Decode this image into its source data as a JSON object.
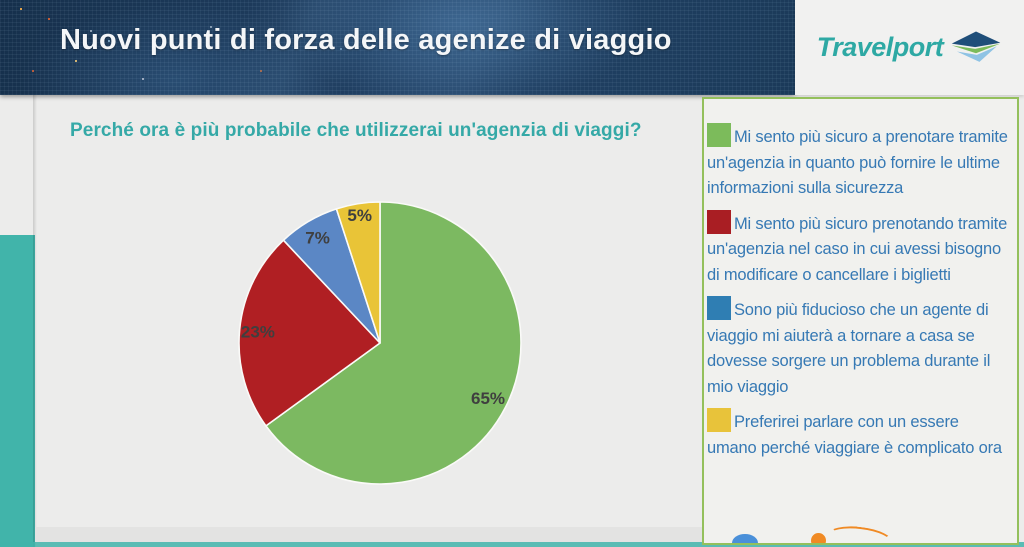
{
  "theme": {
    "header-bg": "#1e3c5b",
    "header-text": "#f4f6f8",
    "logo-area-bg": "#f1f1f0",
    "logo-teal": "#2ea9a4",
    "logo-dark": "#1f4e79",
    "logo-green": "#7cbb5b",
    "logo-light": "#8fc3e4",
    "main-bg": "#ececeb",
    "strip-teal": "#41b4aa",
    "title-teal": "#35a9a7",
    "legend-border": "#94c05c",
    "legend-bg": "#f1f1ee",
    "legend-text": "#3679b4",
    "label-color": "#3f3f3f",
    "bottom-strip": "#e3e3e2",
    "deco-orange": "#f08a24",
    "deco-blue": "#4a90d9"
  },
  "header": {
    "title": "Nuovi punti di forza delle agenize di viaggio",
    "logo_text": "Travelport"
  },
  "main": {
    "chart_title": "Perché ora è più probabile che utilizzerai un'agenzia di viaggi?"
  },
  "chart_data": {
    "type": "pie",
    "title": "Perché ora è più probabile che utilizzerai un'agenzia di viaggi?",
    "values": [
      65,
      23,
      7,
      5
    ],
    "labels": [
      "65%",
      "23%",
      "7%",
      "5%"
    ],
    "colors": [
      "#7cb961",
      "#b01f23",
      "#5b87c5",
      "#e9c437"
    ],
    "legend_colors": [
      "#7cbb5b",
      "#a91e23",
      "#2f7eb3",
      "#e8c33a"
    ],
    "legend": [
      "Mi sento più sicuro a prenotare tramite un'agenzia in quanto può fornire le ultime informazioni sulla sicurezza",
      "Mi sento più sicuro prenotando tramite un'agenzia nel caso in cui avessi bisogno di modificare o cancellare i biglietti",
      "Sono più fiducioso che un agente di viaggio mi aiuterà a tornare a casa se dovesse sorgere un problema durante il mio viaggio",
      "Preferirei parlare con un essere umano perché viaggiare è complicato ora"
    ],
    "start_angle": 0,
    "clockwise": true,
    "legend_position": "right",
    "slice_border_color": "#fafaf8"
  }
}
